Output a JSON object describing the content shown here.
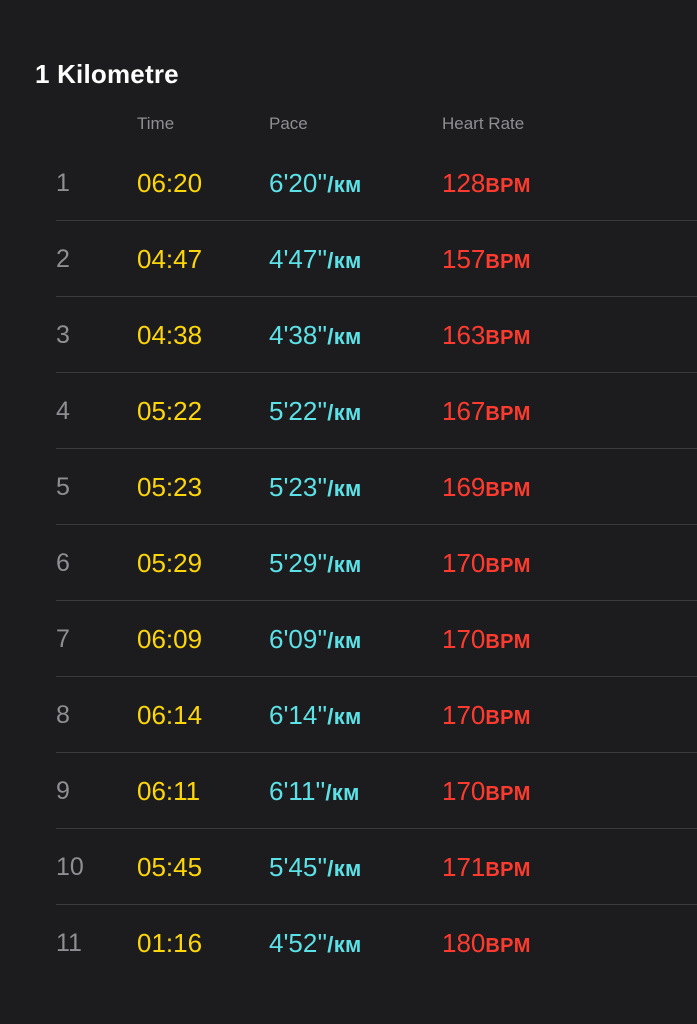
{
  "section": {
    "title": "1 Kilometre"
  },
  "headers": {
    "time": "Time",
    "pace": "Pace",
    "heart_rate": "Heart Rate"
  },
  "units": {
    "pace": "/км",
    "heart_rate": "BPM"
  },
  "colors": {
    "background": "#1c1c1e",
    "time": "#ffd60a",
    "pace": "#5ce1e6",
    "heart_rate": "#ff3b30",
    "index": "#8e8e93"
  },
  "splits": [
    {
      "index": "1",
      "time": "06:20",
      "pace": "6'20''",
      "hr": "128"
    },
    {
      "index": "2",
      "time": "04:47",
      "pace": "4'47''",
      "hr": "157"
    },
    {
      "index": "3",
      "time": "04:38",
      "pace": "4'38''",
      "hr": "163"
    },
    {
      "index": "4",
      "time": "05:22",
      "pace": "5'22''",
      "hr": "167"
    },
    {
      "index": "5",
      "time": "05:23",
      "pace": "5'23''",
      "hr": "169"
    },
    {
      "index": "6",
      "time": "05:29",
      "pace": "5'29''",
      "hr": "170"
    },
    {
      "index": "7",
      "time": "06:09",
      "pace": "6'09''",
      "hr": "170"
    },
    {
      "index": "8",
      "time": "06:14",
      "pace": "6'14''",
      "hr": "170"
    },
    {
      "index": "9",
      "time": "06:11",
      "pace": "6'11''",
      "hr": "170"
    },
    {
      "index": "10",
      "time": "05:45",
      "pace": "5'45''",
      "hr": "171"
    },
    {
      "index": "11",
      "time": "01:16",
      "pace": "4'52''",
      "hr": "180"
    }
  ]
}
